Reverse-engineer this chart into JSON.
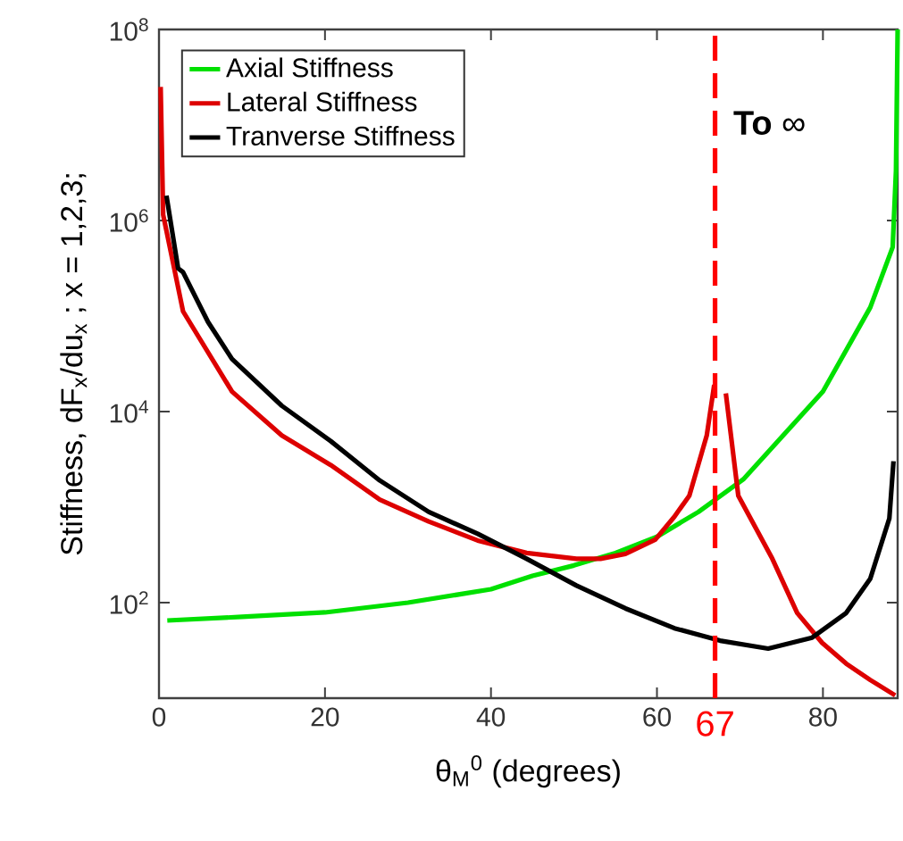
{
  "chart_data": {
    "type": "line",
    "xlabel": "θ$_{M}$$^{0}$ (degrees)",
    "ylabel": "Stiffness, dF$_{x}$/du$_{x}$ ; x = 1,2,3;",
    "log": "y",
    "grid": false,
    "legend": "top left",
    "marker": "none",
    "line_style": "solid",
    "xlim": [
      0,
      89
    ],
    "xticks": [
      0,
      20,
      40,
      60,
      80
    ],
    "ylim": [
      10,
      100000000
    ],
    "yticks": [
      {
        "value": 100,
        "label": "10$^{2}$"
      },
      {
        "value": 10000,
        "label": "10$^{4}$"
      },
      {
        "value": 1000000,
        "label": "10$^{6}$"
      },
      {
        "value": 100000000,
        "label": "10$^{8}$"
      }
    ],
    "series": [
      {
        "name": "Axial Stiffness",
        "color": "#00e000",
        "x": [
          1,
          10,
          20,
          30,
          40,
          45,
          50,
          55,
          60,
          65,
          67.7,
          70.4,
          80,
          85.7,
          88.4,
          88.8,
          89
        ],
        "values": [
          65,
          71,
          79,
          100,
          138,
          191,
          245,
          331,
          490,
          891,
          1318,
          1950,
          16200,
          123000,
          525000,
          3310000,
          100000000
        ]
      },
      {
        "name": "Lateral Stiffness",
        "color": "#dd0000",
        "x": [
          0.2,
          0.5,
          2.9,
          8.8,
          14.8,
          20.7,
          26.6,
          32.5,
          38.4,
          44.3,
          50.3,
          53.2,
          56.2,
          59.8,
          62.1,
          63.9,
          66.0,
          66.9,
          67,
          68.3,
          69.8,
          73.9,
          76.9,
          79.9,
          82.8,
          85.7,
          88.7
        ],
        "values": [
          25000000,
          1150000,
          112000,
          16200,
          5620,
          2750,
          1200,
          708,
          447,
          331,
          288,
          288,
          324,
          457,
          794,
          1318,
          5620,
          19000,
          null,
          15500,
          1318,
          288,
          78,
          38,
          23,
          15.5,
          10.7
        ]
      },
      {
        "name": "Tranverse Stiffness",
        "color": "#000000",
        "x": [
          0.9,
          2.3,
          2.9,
          5.9,
          8.8,
          14.8,
          20.7,
          26.6,
          32.5,
          38.4,
          44.3,
          50.3,
          56.2,
          62.1,
          67.6,
          73.4,
          78.7,
          82.8,
          85.7,
          88.0,
          88.5
        ],
        "values": [
          1820000,
          316000,
          288000,
          87000,
          35500,
          11500,
          4900,
          1900,
          891,
          525,
          288,
          151,
          87,
          54,
          40,
          33,
          43,
          78,
          178,
          759,
          3020
        ]
      }
    ],
    "ref_lines": [
      {
        "axis": "x",
        "value": 67,
        "label": "67",
        "color": "#ff0000",
        "line_style": "dashed"
      }
    ],
    "annotations": [
      "**To** ∞"
    ]
  }
}
